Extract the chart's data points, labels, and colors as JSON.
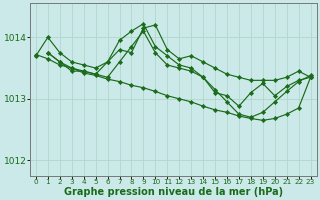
{
  "background_color": "#cce9e9",
  "grid_color": "#b0d8cc",
  "line_color": "#1a6b1a",
  "marker_color": "#1a6b1a",
  "xlabel": "Graphe pression niveau de la mer (hPa)",
  "xlabel_fontsize": 7,
  "xlim": [
    -0.5,
    23.5
  ],
  "ylim": [
    1011.75,
    1014.55
  ],
  "yticks": [
    1012,
    1013,
    1014
  ],
  "xtick_labels": [
    "0",
    "1",
    "2",
    "3",
    "4",
    "5",
    "6",
    "7",
    "8",
    "9",
    "10",
    "11",
    "12",
    "13",
    "14",
    "15",
    "16",
    "17",
    "18",
    "19",
    "20",
    "21",
    "22",
    "23"
  ],
  "series": [
    {
      "x": [
        0,
        1,
        2,
        3,
        4,
        5,
        6,
        7,
        8,
        9,
        10,
        11,
        12,
        13,
        14,
        15,
        16,
        17,
        18,
        19,
        20,
        21,
        22,
        23
      ],
      "y": [
        1013.7,
        1014.0,
        1013.75,
        1013.6,
        1013.55,
        1013.5,
        1013.6,
        1013.8,
        1013.75,
        1014.15,
        1014.2,
        1013.8,
        1013.65,
        1013.7,
        1013.6,
        1013.5,
        1013.4,
        1013.35,
        1013.3,
        1013.3,
        1013.3,
        1013.35,
        1013.45,
        1013.35
      ]
    },
    {
      "x": [
        1,
        2,
        3,
        4,
        5,
        6,
        7,
        8,
        9,
        10,
        11,
        12,
        13,
        14,
        15,
        16,
        17,
        18,
        19,
        20,
        21,
        22,
        23
      ],
      "y": [
        1013.75,
        1013.6,
        1013.45,
        1013.45,
        1013.4,
        1013.6,
        1013.95,
        1014.1,
        1014.22,
        1013.85,
        1013.7,
        1013.55,
        1013.5,
        1013.35,
        1013.1,
        1013.05,
        1012.88,
        1013.1,
        1013.25,
        1013.05,
        1013.2,
        1013.3,
        1013.35
      ]
    },
    {
      "x": [
        1,
        2,
        3,
        4,
        5,
        6,
        7,
        8,
        9,
        10,
        11,
        12,
        13,
        14,
        15,
        16,
        17,
        18,
        19,
        20,
        21,
        22,
        23
      ],
      "y": [
        1013.75,
        1013.6,
        1013.5,
        1013.45,
        1013.4,
        1013.35,
        1013.6,
        1013.85,
        1014.1,
        1013.75,
        1013.55,
        1013.5,
        1013.45,
        1013.35,
        1013.15,
        1012.95,
        1012.75,
        1012.7,
        1012.78,
        1012.95,
        1013.12,
        1013.28,
        1013.38
      ]
    },
    {
      "x": [
        0,
        1,
        2,
        3,
        4,
        5,
        6,
        7,
        8,
        9,
        10,
        11,
        12,
        13,
        14,
        15,
        16,
        17,
        18,
        19,
        20,
        21,
        22,
        23
      ],
      "y": [
        1013.72,
        1013.65,
        1013.55,
        1013.5,
        1013.42,
        1013.38,
        1013.32,
        1013.28,
        1013.22,
        1013.18,
        1013.12,
        1013.05,
        1013.0,
        1012.95,
        1012.88,
        1012.82,
        1012.78,
        1012.72,
        1012.68,
        1012.65,
        1012.68,
        1012.75,
        1012.85,
        1013.35
      ]
    }
  ]
}
